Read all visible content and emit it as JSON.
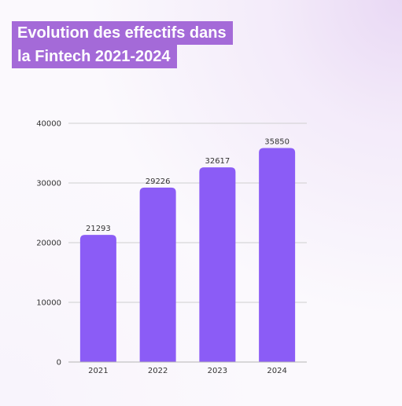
{
  "title": {
    "line1": "Evolution des effectifs dans",
    "line2": "la Fintech 2021-2024"
  },
  "colors": {
    "bar": "#8b5cf6",
    "title_bg": "#a46ad8",
    "grid": "#cfcfcf",
    "text": "#333333"
  },
  "chart_data": {
    "type": "bar",
    "title": "Evolution des effectifs dans la Fintech 2021-2024",
    "categories": [
      "2021",
      "2022",
      "2023",
      "2024"
    ],
    "values": [
      21293,
      29226,
      32617,
      35850
    ],
    "data_labels": [
      "21293",
      "29226",
      "32617",
      "35850"
    ],
    "xlabel": "",
    "ylabel": "",
    "ylim": [
      0,
      40000
    ],
    "yticks": [
      0,
      10000,
      20000,
      30000,
      40000
    ],
    "ytick_labels": [
      "0",
      "10000",
      "20000",
      "30000",
      "40000"
    ],
    "grid": true,
    "legend": false
  }
}
